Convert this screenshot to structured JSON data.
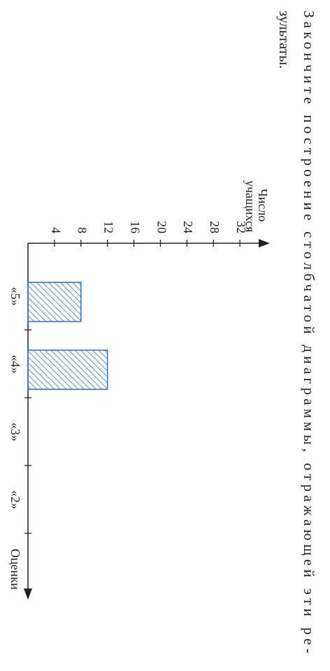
{
  "instruction": [
    "Закончите построение столбчатой диаграммы, отражающей эти ре-",
    "зультаты."
  ],
  "chart_data": {
    "type": "bar",
    "y_label": [
      "Число",
      "учащихся"
    ],
    "x_label": "Оценки",
    "categories": [
      "«5»",
      "«4»",
      "«3»",
      "«2»"
    ],
    "values": [
      8,
      12,
      null,
      null
    ],
    "color": "#3f72b8",
    "ylim": [
      0,
      36
    ],
    "yticks": [
      4,
      8,
      12,
      16,
      20,
      24,
      28,
      32
    ]
  }
}
